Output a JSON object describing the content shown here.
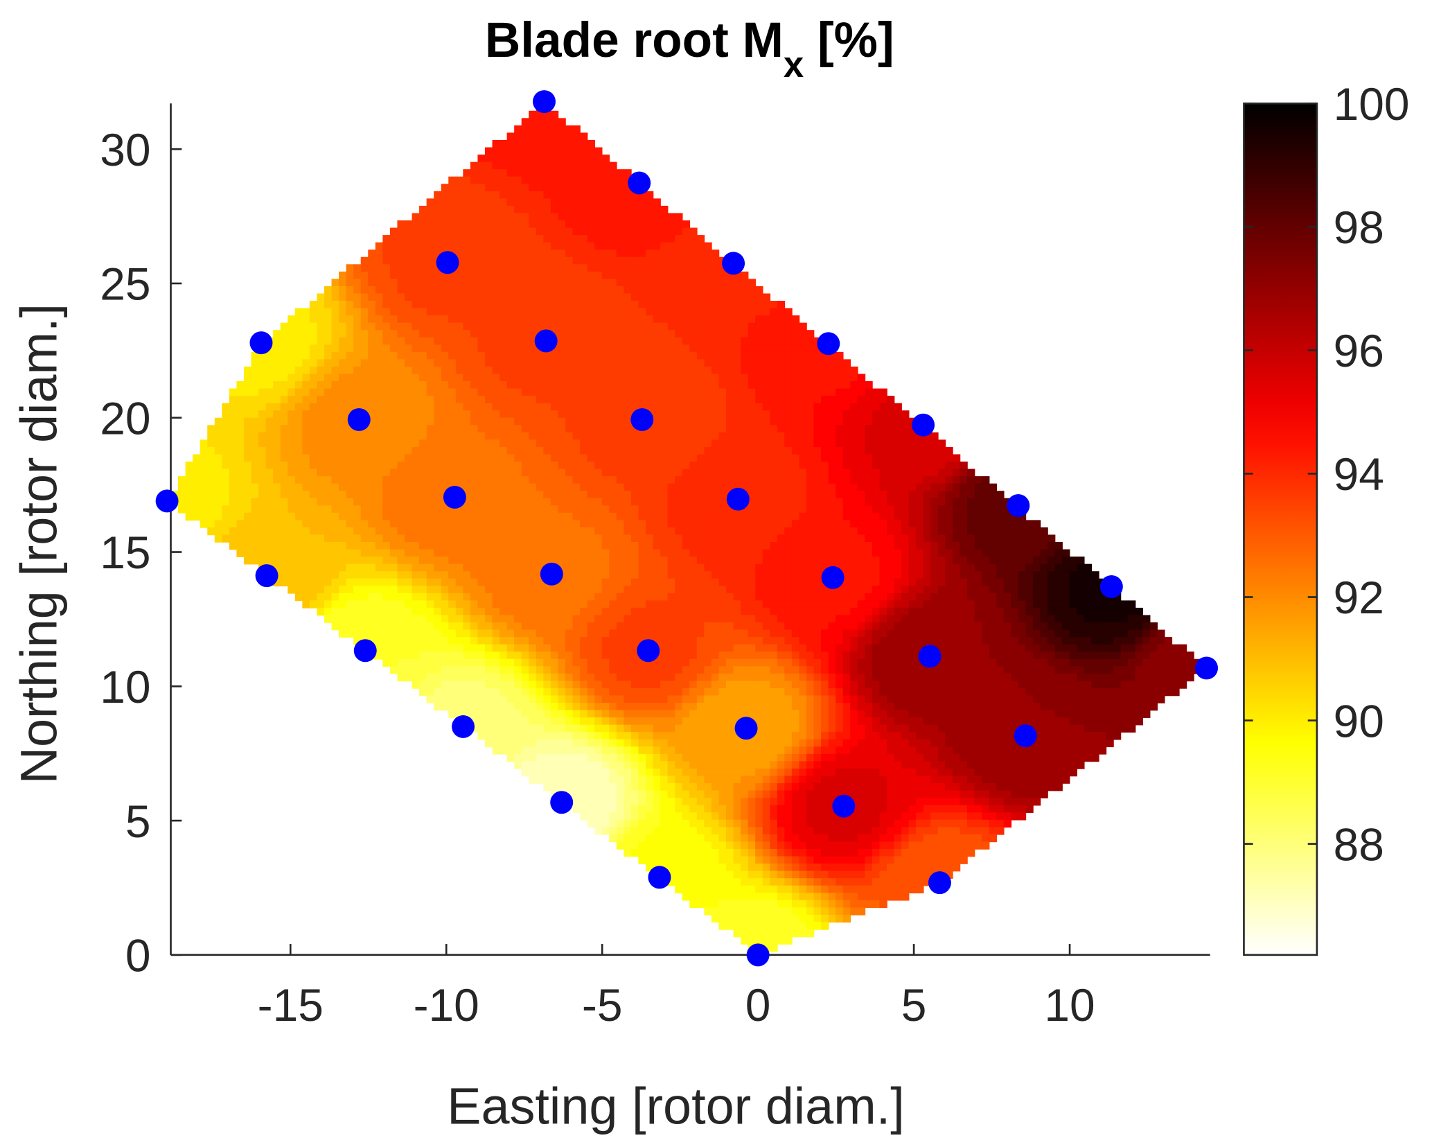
{
  "chart_data": {
    "type": "heatmap",
    "subtype": "filled-contour-with-scatter",
    "title": "Blade root M",
    "title_subscript": "x",
    "title_suffix": " [%]",
    "xlabel": "Easting [rotor diam.]",
    "ylabel": "Northing [rotor diam.]",
    "xlim": [
      -19,
      14.4
    ],
    "ylim": [
      0,
      31.8
    ],
    "xticks": [
      -15,
      -10,
      -5,
      0,
      5,
      10
    ],
    "yticks": [
      0,
      5,
      10,
      15,
      20,
      25,
      30
    ],
    "colorbar": {
      "range": [
        86.2,
        100
      ],
      "ticks": [
        88,
        90,
        92,
        94,
        96,
        98,
        100
      ],
      "colormap": "hot-reversed"
    },
    "marker_color": "#0000ff",
    "points": {
      "x": [
        -6.86,
        -3.81,
        -9.96,
        -0.79,
        -15.94,
        -6.8,
        2.26,
        -12.8,
        -3.72,
        5.3,
        -18.96,
        -9.73,
        -0.64,
        8.35,
        -15.76,
        -6.62,
        2.4,
        11.34,
        -12.6,
        -3.52,
        5.51,
        14.39,
        -9.46,
        -0.38,
        8.58,
        -6.3,
        2.75,
        -3.16,
        5.83,
        0.0
      ],
      "y": [
        31.77,
        28.74,
        25.78,
        25.75,
        22.79,
        22.86,
        22.76,
        19.93,
        19.93,
        19.73,
        16.9,
        17.04,
        16.97,
        16.73,
        14.12,
        14.18,
        14.05,
        13.71,
        11.33,
        11.33,
        11.12,
        10.68,
        8.5,
        8.44,
        8.16,
        5.68,
        5.54,
        2.89,
        2.69,
        0.0
      ],
      "value": [
        94.5,
        94.5,
        93.5,
        94,
        90,
        93.5,
        94.5,
        92,
        93.5,
        95.5,
        90,
        92.5,
        94,
        98,
        91,
        92.5,
        94.5,
        99.5,
        89,
        93.5,
        97,
        97,
        88,
        91.5,
        97,
        87,
        95.5,
        89.5,
        93,
        89
      ]
    }
  }
}
